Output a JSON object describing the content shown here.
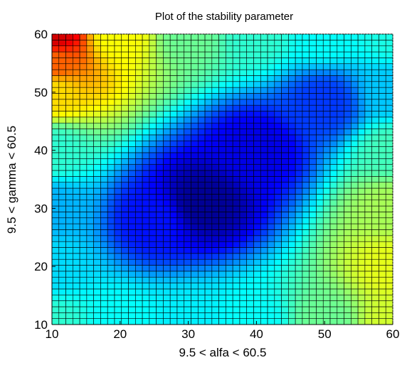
{
  "chart_data": {
    "type": "heatmap",
    "title": "Plot of the stability parameter",
    "xlabel": "9.5 < alfa < 60.5",
    "ylabel": "9.5 < gamma < 60.5",
    "xlim": [
      10,
      60
    ],
    "ylim": [
      10,
      60
    ],
    "x_ticks": [
      "10",
      "20",
      "30",
      "40",
      "50",
      "60"
    ],
    "y_ticks": [
      "10",
      "20",
      "30",
      "40",
      "50",
      "60"
    ],
    "colormap": "jet",
    "grid_points_per_axis": 49,
    "minimum": {
      "x": 32,
      "y": 31
    },
    "cell_edge_color": "#000000",
    "axes_box": "dotted",
    "samples": [
      {
        "x": 10,
        "y": 60,
        "level": 0.92
      },
      {
        "x": 10,
        "y": 55,
        "level": 0.78
      },
      {
        "x": 10,
        "y": 50,
        "level": 0.66
      },
      {
        "x": 10,
        "y": 40,
        "level": 0.42
      },
      {
        "x": 10,
        "y": 30,
        "level": 0.3
      },
      {
        "x": 10,
        "y": 20,
        "level": 0.34
      },
      {
        "x": 10,
        "y": 10,
        "level": 0.42
      },
      {
        "x": 20,
        "y": 60,
        "level": 0.62
      },
      {
        "x": 30,
        "y": 60,
        "level": 0.48
      },
      {
        "x": 40,
        "y": 60,
        "level": 0.42
      },
      {
        "x": 50,
        "y": 60,
        "level": 0.38
      },
      {
        "x": 60,
        "y": 60,
        "level": 0.4
      },
      {
        "x": 60,
        "y": 50,
        "level": 0.32
      },
      {
        "x": 60,
        "y": 40,
        "level": 0.44
      },
      {
        "x": 60,
        "y": 30,
        "level": 0.54
      },
      {
        "x": 60,
        "y": 20,
        "level": 0.6
      },
      {
        "x": 60,
        "y": 10,
        "level": 0.58
      },
      {
        "x": 50,
        "y": 10,
        "level": 0.48
      },
      {
        "x": 40,
        "y": 10,
        "level": 0.38
      },
      {
        "x": 30,
        "y": 10,
        "level": 0.36
      },
      {
        "x": 20,
        "y": 10,
        "level": 0.38
      },
      {
        "x": 32,
        "y": 31,
        "level": 0.02
      },
      {
        "x": 40,
        "y": 40,
        "level": 0.1
      },
      {
        "x": 50,
        "y": 48,
        "level": 0.18
      },
      {
        "x": 25,
        "y": 28,
        "level": 0.14
      }
    ]
  }
}
